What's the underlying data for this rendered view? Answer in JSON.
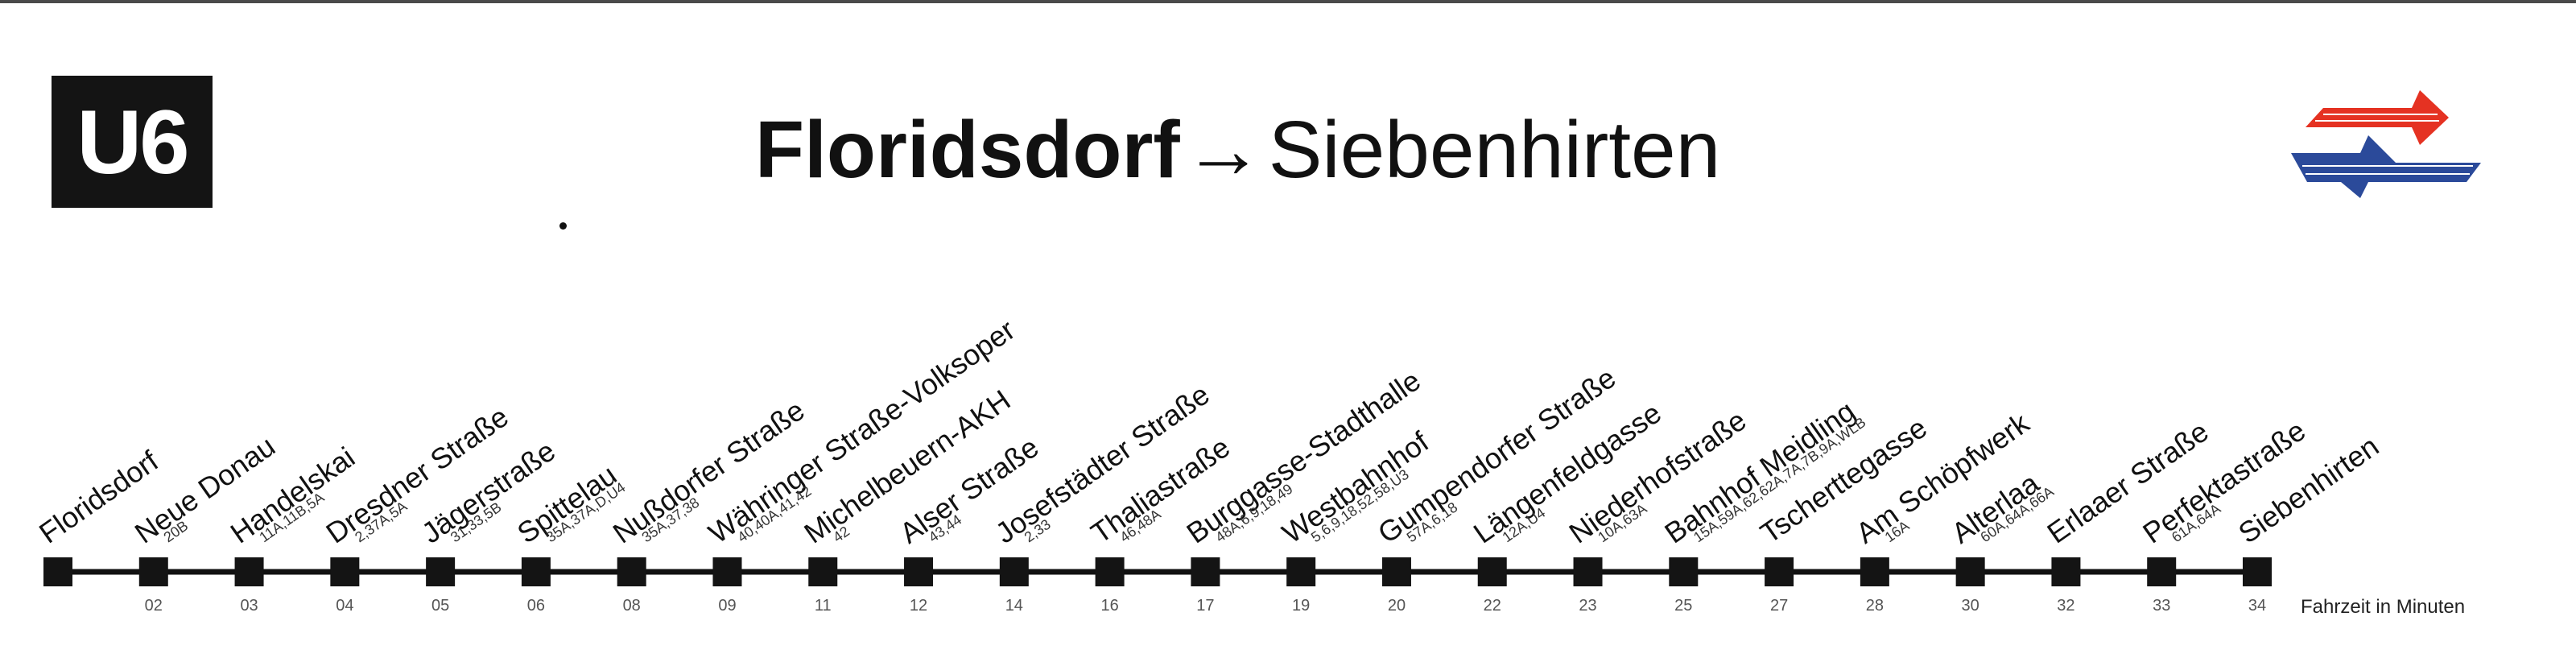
{
  "line": {
    "label": "U6",
    "color": "#141414"
  },
  "route": {
    "origin": "Floridsdorf",
    "arrow": "→",
    "destination": "Siebenhirten"
  },
  "logo": {
    "icon": "wiener-linien-logo-icon",
    "colors": {
      "top": "#e53222",
      "bottom": "#2b4a9a"
    }
  },
  "stations": [
    {
      "name": "Floridsdorf",
      "transfer": "",
      "time": ""
    },
    {
      "name": "Neue Donau",
      "transfer": "20B",
      "time": "02"
    },
    {
      "name": "Handelskai",
      "transfer": "11A,11B,5A",
      "time": "03"
    },
    {
      "name": "Dresdner Straße",
      "transfer": "2,37A,5A",
      "time": "04"
    },
    {
      "name": "Jägerstraße",
      "transfer": "31,33,5B",
      "time": "05"
    },
    {
      "name": "Spittelau",
      "transfer": "35A,37A,D,U4",
      "time": "06"
    },
    {
      "name": "Nußdorfer Straße",
      "transfer": "35A,37,38",
      "time": "08"
    },
    {
      "name": "Währinger Straße-Volksoper",
      "transfer": "40,40A,41,42",
      "time": "09"
    },
    {
      "name": "Michelbeuern-AKH",
      "transfer": "42",
      "time": "11"
    },
    {
      "name": "Alser Straße",
      "transfer": "43,44",
      "time": "12"
    },
    {
      "name": "Josefstädter Straße",
      "transfer": "2,33",
      "time": "14"
    },
    {
      "name": "Thaliastraße",
      "transfer": "46,48A",
      "time": "16"
    },
    {
      "name": "Burggasse-Stadthalle",
      "transfer": "48A,6,9,18,49",
      "time": "17"
    },
    {
      "name": "Westbahnhof",
      "transfer": "5,6,9,18,52,58,U3",
      "time": "19"
    },
    {
      "name": "Gumpendorfer Straße",
      "transfer": "57A,6,18",
      "time": "20"
    },
    {
      "name": "Längenfeldgasse",
      "transfer": "12A,U4",
      "time": "22"
    },
    {
      "name": "Niederhofstraße",
      "transfer": "10A,63A",
      "time": "23"
    },
    {
      "name": "Bahnhof Meidling",
      "transfer": "15A,59A,62,62A,7A,7B,9A,WLB",
      "time": "25"
    },
    {
      "name": "Tscherttegasse",
      "transfer": "",
      "time": "27"
    },
    {
      "name": "Am Schöpfwerk",
      "transfer": "16A",
      "time": "28"
    },
    {
      "name": "Alterlaa",
      "transfer": "60A,64A,66A",
      "time": "30"
    },
    {
      "name": "Erlaaer Straße",
      "transfer": "",
      "time": "32"
    },
    {
      "name": "Perfektastraße",
      "transfer": "61A,64A",
      "time": "33"
    },
    {
      "name": "Siebenhirten",
      "transfer": "",
      "time": "34"
    }
  ],
  "legend": {
    "travel_time_label": "Fahrzeit in Minuten"
  }
}
